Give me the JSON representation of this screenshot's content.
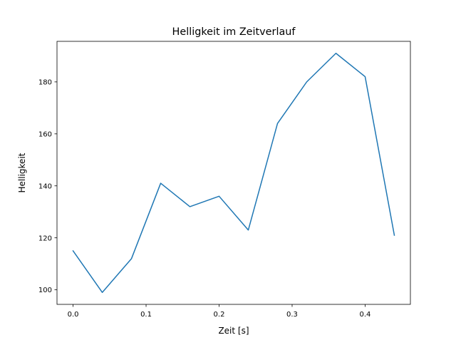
{
  "chart_data": {
    "type": "line",
    "title": "Helligkeit im Zeitverlauf",
    "xlabel": "Zeit [s]",
    "ylabel": "Helligkeit",
    "x": [
      0.0,
      0.04,
      0.08,
      0.12,
      0.16,
      0.2,
      0.24,
      0.28,
      0.32,
      0.36,
      0.4,
      0.44
    ],
    "series": [
      {
        "name": "Helligkeit",
        "color": "#1f77b4",
        "values": [
          115,
          99,
          112,
          141,
          132,
          136,
          123,
          164,
          180,
          191,
          182,
          121
        ]
      }
    ],
    "xlim": [
      -0.022,
      0.462
    ],
    "ylim": [
      94.4,
      195.6
    ],
    "xticks": [
      0.0,
      0.1,
      0.2,
      0.3,
      0.4
    ],
    "xtick_labels": [
      "0.0",
      "0.1",
      "0.2",
      "0.3",
      "0.4"
    ],
    "yticks": [
      100,
      120,
      140,
      160,
      180
    ],
    "ytick_labels": [
      "100",
      "120",
      "140",
      "160",
      "180"
    ],
    "grid": false,
    "legend": "none"
  }
}
